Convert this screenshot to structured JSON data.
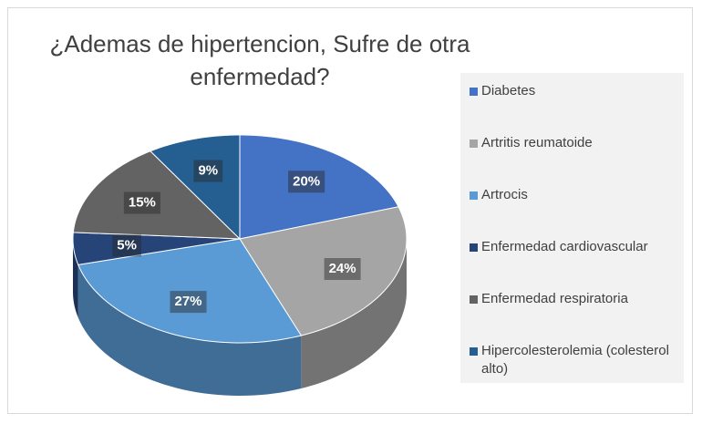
{
  "chart_data": {
    "type": "pie",
    "title": "¿Ademas de hipertencion, Sufre de otra enfermedad?",
    "categories": [
      "Diabetes",
      "Artritis reumatoide",
      "Artrocis",
      "Enfermedad cardiovascular",
      "Enfermedad respiratoria",
      "Hipercolesterolemia (colesterol alto)"
    ],
    "values": [
      20,
      24,
      27,
      5,
      15,
      9
    ],
    "value_labels": [
      "20%",
      "24%",
      "27%",
      "5%",
      "15%",
      "9%"
    ],
    "colors": [
      "#4472c4",
      "#a5a5a5",
      "#5b9bd5",
      "#264478",
      "#636363",
      "#255e91"
    ],
    "legend": "right"
  }
}
